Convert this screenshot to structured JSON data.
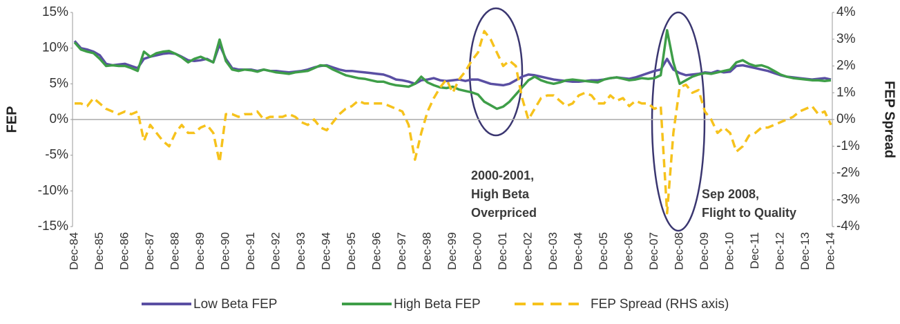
{
  "chart_data": {
    "type": "line",
    "y_label": "FEP",
    "y2_label": "FEP Spread",
    "categories": [
      "Dec-84",
      null,
      null,
      null,
      "Dec-85",
      null,
      null,
      null,
      "Dec-86",
      null,
      null,
      null,
      "Dec-87",
      null,
      null,
      null,
      "Dec-88",
      null,
      null,
      null,
      "Dec-89",
      null,
      null,
      null,
      "Dec-90",
      null,
      null,
      null,
      "Dec-91",
      null,
      null,
      null,
      "Dec-92",
      null,
      null,
      null,
      "Dec-93",
      null,
      null,
      null,
      "Dec-94",
      null,
      null,
      null,
      "Dec-95",
      null,
      null,
      null,
      "Dec-96",
      null,
      null,
      null,
      "Dec-97",
      null,
      null,
      null,
      "Dec-98",
      null,
      null,
      null,
      "Dec-99",
      null,
      null,
      null,
      "Dec-00",
      null,
      null,
      null,
      "Dec-01",
      null,
      null,
      null,
      "Dec-02",
      null,
      null,
      null,
      "Dec-03",
      null,
      null,
      null,
      "Dec-04",
      null,
      null,
      null,
      "Dec-05",
      null,
      null,
      null,
      "Dec-06",
      null,
      null,
      null,
      "Dec-07",
      null,
      null,
      null,
      "Dec-08",
      null,
      null,
      null,
      "Dec-09",
      null,
      null,
      null,
      "Dec-10",
      null,
      null,
      null,
      "Dec-11",
      null,
      null,
      null,
      "Dec-12",
      null,
      null,
      null,
      "Dec-13",
      null,
      null,
      null,
      "Dec-14"
    ],
    "series": [
      {
        "name": "Low Beta FEP",
        "color": "#5a4fa3",
        "style": "solid",
        "values": [
          11,
          10,
          9.8,
          9.5,
          9,
          7.8,
          7.6,
          7.7,
          7.8,
          7.5,
          7.2,
          8.5,
          8.8,
          9,
          9.2,
          9.3,
          9.2,
          8.8,
          8.3,
          8.2,
          8.3,
          8.5,
          8,
          10.5,
          8.5,
          7.2,
          7,
          7,
          7,
          6.8,
          7,
          6.8,
          6.8,
          6.7,
          6.6,
          6.7,
          6.8,
          7,
          7.3,
          7.5,
          7.6,
          7.3,
          7,
          6.8,
          6.8,
          6.7,
          6.6,
          6.5,
          6.4,
          6.3,
          6,
          5.6,
          5.5,
          5.3,
          5,
          5.5,
          5.6,
          5.8,
          5.5,
          5.4,
          5.5,
          5.6,
          5.4,
          5.6,
          5.6,
          5.3,
          5,
          4.9,
          4.8,
          5,
          5.5,
          6,
          6.3,
          6.2,
          6,
          5.8,
          5.6,
          5.5,
          5.4,
          5.3,
          5.3,
          5.4,
          5.5,
          5.5,
          5.6,
          5.8,
          5.9,
          5.8,
          5.7,
          5.9,
          6.2,
          6.5,
          6.8,
          7,
          8.5,
          7,
          6.5,
          6.2,
          6.3,
          6.4,
          6.6,
          6.5,
          6.8,
          6.6,
          6.7,
          7.5,
          7.6,
          7.4,
          7.2,
          7,
          6.8,
          6.5,
          6.2,
          6,
          5.9,
          5.8,
          5.7,
          5.6,
          5.7,
          5.8,
          5.6
        ]
      },
      {
        "name": "High Beta FEP",
        "color": "#3e9e48",
        "style": "solid",
        "values": [
          10.8,
          9.8,
          9.5,
          9.3,
          8.5,
          7.5,
          7.6,
          7.5,
          7.5,
          7.2,
          6.8,
          9.5,
          8.8,
          9.3,
          9.5,
          9.6,
          9.2,
          8.7,
          8,
          8.5,
          8.8,
          8.4,
          8,
          11.2,
          8.2,
          7,
          6.8,
          7,
          6.9,
          6.7,
          7,
          6.8,
          6.6,
          6.5,
          6.4,
          6.6,
          6.7,
          6.8,
          7.2,
          7.6,
          7.5,
          7,
          6.6,
          6.2,
          6,
          5.8,
          5.7,
          5.5,
          5.3,
          5.3,
          5,
          4.8,
          4.7,
          4.6,
          5,
          6,
          5.2,
          4.8,
          4.5,
          4.4,
          4.6,
          4.2,
          4,
          3.8,
          3.5,
          2.5,
          2,
          1.5,
          1.8,
          2.5,
          3.5,
          4.5,
          5.5,
          6,
          5.5,
          5.2,
          5,
          5.2,
          5.5,
          5.6,
          5.5,
          5.4,
          5.3,
          5.2,
          5.6,
          5.8,
          5.9,
          5.7,
          5.5,
          5.6,
          5.8,
          5.7,
          5.8,
          6.2,
          12.5,
          8,
          5,
          5.5,
          6,
          6.3,
          6.5,
          6.4,
          6.6,
          6.8,
          7,
          8,
          8.3,
          7.8,
          7.5,
          7.6,
          7.3,
          6.8,
          6.3,
          6,
          5.8,
          5.7,
          5.6,
          5.5,
          5.5,
          5.4,
          5.5
        ]
      },
      {
        "name": "FEP Spread (RHS axis)",
        "color": "#f6c21c",
        "style": "dashed",
        "axis": "y2",
        "values": [
          0.6,
          0.6,
          0.5,
          0.8,
          0.6,
          0.4,
          0.3,
          0.2,
          0.3,
          0.2,
          0.3,
          -0.8,
          -0.2,
          -0.5,
          -0.8,
          -1,
          -0.5,
          -0.2,
          -0.5,
          -0.5,
          -0.3,
          -0.2,
          -0.5,
          -1.6,
          0.2,
          0.2,
          0.1,
          0.2,
          0.2,
          0.3,
          0,
          0.1,
          0.1,
          0.1,
          0.2,
          0.1,
          -0.1,
          -0.2,
          0,
          -0.3,
          -0.4,
          -0.1,
          0.2,
          0.4,
          0.5,
          0.7,
          0.6,
          0.6,
          0.6,
          0.6,
          0.5,
          0.4,
          0.3,
          -0.2,
          -1.5,
          -0.5,
          0.3,
          0.8,
          1.2,
          1.5,
          1,
          1.5,
          1.8,
          2.2,
          2.5,
          3.3,
          3,
          2.5,
          2,
          2.2,
          2,
          0.8,
          0,
          0.4,
          0.8,
          0.9,
          0.9,
          0.7,
          0.5,
          0.6,
          0.9,
          1,
          0.9,
          0.6,
          0.6,
          0.9,
          0.7,
          0.8,
          0.5,
          0.7,
          0.6,
          0.6,
          0.4,
          0.5,
          -3.5,
          -0.5,
          1.2,
          1.3,
          1,
          1.1,
          0.3,
          0,
          -0.5,
          -0.3,
          -0.5,
          -1.2,
          -1,
          -0.6,
          -0.5,
          -0.3,
          -0.3,
          -0.2,
          -0.1,
          0,
          0.1,
          0.3,
          0.4,
          0.5,
          0.2,
          0.3,
          -0.2
        ]
      }
    ],
    "ylim": [
      -15,
      15
    ],
    "yticks": [
      {
        "value": -15,
        "label": "-15%"
      },
      {
        "value": -10,
        "label": "-10%"
      },
      {
        "value": -5,
        "label": "-5%"
      },
      {
        "value": 0,
        "label": "0%"
      },
      {
        "value": 5,
        "label": "5%"
      },
      {
        "value": 10,
        "label": "10%"
      },
      {
        "value": 15,
        "label": "15%"
      }
    ],
    "y2lim": [
      -4,
      4
    ],
    "y2ticks": [
      {
        "value": -4,
        "label": "-4%"
      },
      {
        "value": -3,
        "label": "-3%"
      },
      {
        "value": -2,
        "label": "-2%"
      },
      {
        "value": -1,
        "label": "-1%"
      },
      {
        "value": 0,
        "label": "0%"
      },
      {
        "value": 1,
        "label": "1%"
      },
      {
        "value": 2,
        "label": "2%"
      },
      {
        "value": 3,
        "label": "3%"
      },
      {
        "value": 4,
        "label": "4%"
      }
    ],
    "annotations": [
      [
        "2000-2001,",
        "High Beta",
        "Overpriced"
      ],
      [
        "Sep  2008,",
        "Flight to Quality"
      ]
    ],
    "legend": "bottom"
  }
}
